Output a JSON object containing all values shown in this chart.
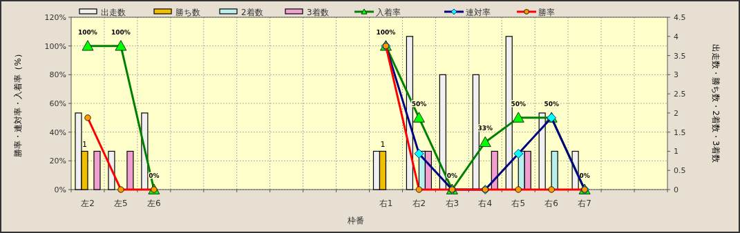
{
  "chart_data": {
    "type": "bar",
    "xlabel": "枠番",
    "ylabel": "勝率・連対率・入着率（%）",
    "y2label": "出走数・勝ち数・2着数・3着数",
    "categories": [
      "左2",
      "左5",
      "左6",
      null,
      null,
      null,
      null,
      null,
      null,
      "右1",
      "右2",
      "右3",
      "右4",
      "右5",
      "右6",
      "右7",
      null,
      null
    ],
    "series": [
      {
        "name": "出走数",
        "axis": "y2",
        "color": "#f0f0f0",
        "values": [
          2,
          1,
          2,
          null,
          null,
          null,
          null,
          null,
          null,
          1,
          4,
          3,
          3,
          4,
          2,
          1,
          null,
          null
        ]
      },
      {
        "name": "勝ち数",
        "axis": "y2",
        "color": "#f0c000",
        "values": [
          1,
          0,
          0,
          null,
          null,
          null,
          null,
          null,
          null,
          1,
          0,
          0,
          0,
          0,
          0,
          0,
          null,
          null
        ],
        "value_labels": [
          "1",
          null,
          null,
          null,
          null,
          null,
          null,
          null,
          null,
          "1",
          null,
          null,
          null,
          null,
          null,
          null,
          null,
          null
        ]
      },
      {
        "name": "2着数",
        "axis": "y2",
        "color": "#b8f0f0",
        "values": [
          0,
          0,
          0,
          null,
          null,
          null,
          null,
          null,
          null,
          0,
          1,
          0,
          0,
          1,
          1,
          0,
          null,
          null
        ]
      },
      {
        "name": "3着数",
        "axis": "y2",
        "color": "#f0a0d0",
        "values": [
          1,
          1,
          0,
          null,
          null,
          null,
          null,
          null,
          null,
          0,
          1,
          0,
          1,
          1,
          0,
          0,
          null,
          null
        ]
      },
      {
        "name": "入着率",
        "type": "line",
        "marker": "triangle",
        "color": "#008000",
        "values": [
          100,
          100,
          0,
          null,
          null,
          null,
          null,
          null,
          null,
          100,
          50,
          0,
          33,
          50,
          50,
          0,
          null,
          null
        ],
        "value_labels": [
          "100%",
          "100%",
          "0%",
          null,
          null,
          null,
          null,
          null,
          null,
          "100%",
          "50%",
          "0%",
          "33%",
          "50%",
          "50%",
          "0%",
          null,
          null
        ]
      },
      {
        "name": "連対率",
        "type": "line",
        "marker": "diamond",
        "color": "#000080",
        "values": [
          null,
          null,
          null,
          null,
          null,
          null,
          null,
          null,
          null,
          100,
          25,
          0,
          0,
          25,
          50,
          0,
          null,
          null
        ]
      },
      {
        "name": "勝率",
        "type": "line",
        "marker": "circle",
        "color": "#ff0000",
        "values": [
          50,
          0,
          0,
          null,
          null,
          null,
          null,
          null,
          null,
          100,
          0,
          0,
          0,
          0,
          0,
          0,
          null,
          null
        ]
      }
    ],
    "ylim": [
      0,
      120
    ],
    "yticks": [
      {
        "value": 0,
        "label": "0%"
      },
      {
        "value": 20,
        "label": "20%"
      },
      {
        "value": 40,
        "label": "40%"
      },
      {
        "value": 60,
        "label": "60%"
      },
      {
        "value": 80,
        "label": "80%"
      },
      {
        "value": 100,
        "label": "100%"
      },
      {
        "value": 120,
        "label": "120%"
      }
    ],
    "y2lim": [
      0,
      4.5
    ],
    "y2ticks": [
      0,
      0.5,
      1,
      1.5,
      2,
      2.5,
      3,
      3.5,
      4,
      4.5
    ],
    "grid": true,
    "legend": "top"
  }
}
